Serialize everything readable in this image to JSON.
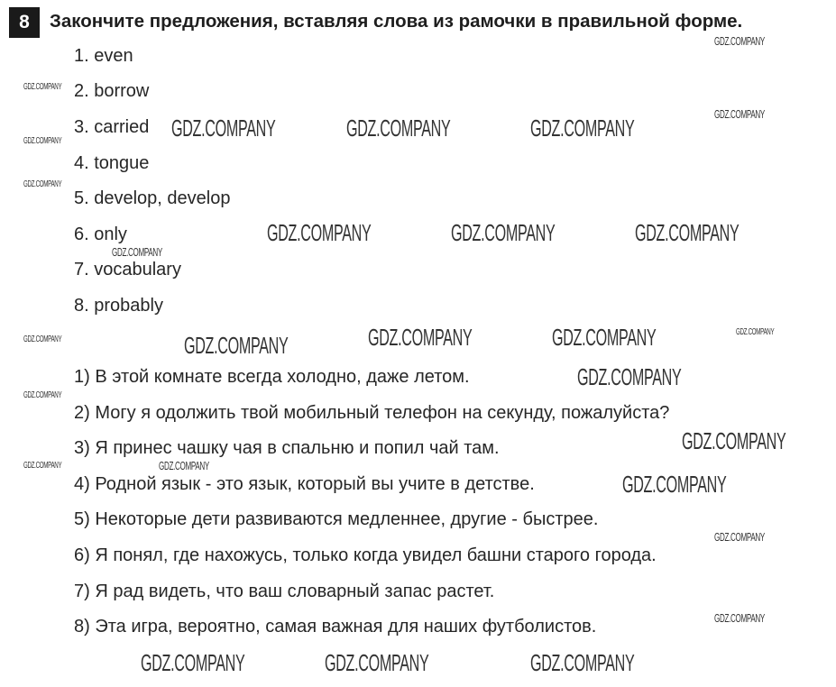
{
  "exercise": {
    "number": "8",
    "title": "Закончите предложения, вставляя слова из рамочки в правильной форме."
  },
  "answers": [
    "1. even",
    "2. borrow",
    "3. carried",
    "4. tongue",
    "5. develop, develop",
    "6. only",
    "7. vocabulary",
    "8. probably"
  ],
  "translations": [
    "1) В этой комнате всегда холодно, даже летом.",
    "2) Могу я одолжить твой мобильный телефон на секунду, пожалуйста?",
    "3) Я принес чашку чая в спальню и попил чай там.",
    "4) Родной язык - это язык, который вы учите в детстве.",
    "5) Некоторые дети развиваются медленнее, другие - быстрее.",
    "6) Я понял, где нахожусь, только когда увидел башни старого города.",
    "7) Я рад видеть, что ваш словарный запас растет.",
    "8) Эта игра, вероятно, самая важная для наших футболистов."
  ],
  "watermark": "GDZ.COMPANY"
}
